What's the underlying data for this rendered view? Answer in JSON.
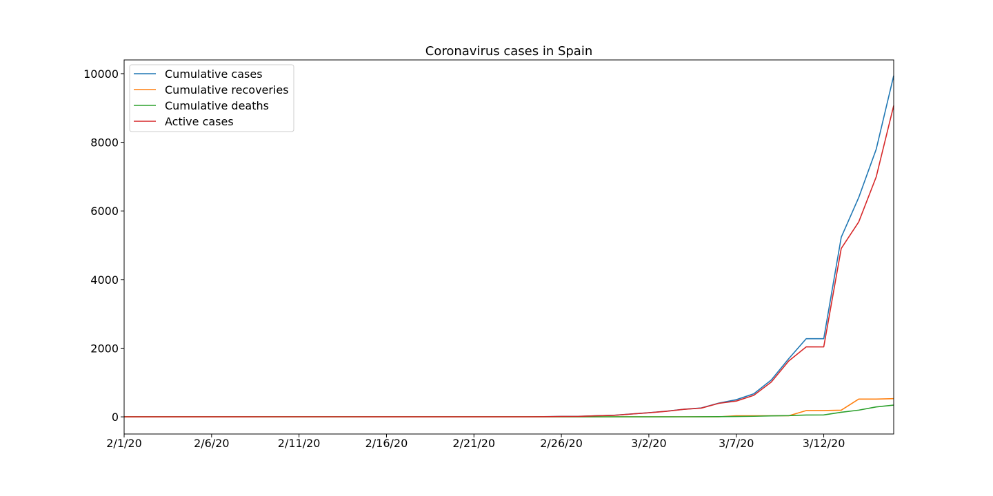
{
  "chart_data": {
    "type": "line",
    "title": "Coronavirus cases in Spain",
    "xlabel": "",
    "ylabel": "",
    "x": [
      "2/1/20",
      "2/2/20",
      "2/3/20",
      "2/4/20",
      "2/5/20",
      "2/6/20",
      "2/7/20",
      "2/8/20",
      "2/9/20",
      "2/10/20",
      "2/11/20",
      "2/12/20",
      "2/13/20",
      "2/14/20",
      "2/15/20",
      "2/16/20",
      "2/17/20",
      "2/18/20",
      "2/19/20",
      "2/20/20",
      "2/21/20",
      "2/22/20",
      "2/23/20",
      "2/24/20",
      "2/25/20",
      "2/26/20",
      "2/27/20",
      "2/28/20",
      "2/29/20",
      "3/1/20",
      "3/2/20",
      "3/3/20",
      "3/4/20",
      "3/5/20",
      "3/6/20",
      "3/7/20",
      "3/8/20",
      "3/9/20",
      "3/10/20",
      "3/11/20",
      "3/12/20",
      "3/13/20",
      "3/14/20",
      "3/15/20",
      "3/16/20"
    ],
    "x_ticks": [
      "2/1/20",
      "2/6/20",
      "2/11/20",
      "2/16/20",
      "2/21/20",
      "2/26/20",
      "3/2/20",
      "3/7/20",
      "3/12/20"
    ],
    "y_ticks": [
      0,
      2000,
      4000,
      6000,
      8000,
      10000
    ],
    "ylim": [
      -500,
      10400
    ],
    "grid": false,
    "legend_position": "top-left",
    "series": [
      {
        "name": "Cumulative cases",
        "color": "#1f77b4",
        "values": [
          1,
          1,
          1,
          1,
          1,
          1,
          1,
          1,
          2,
          2,
          2,
          2,
          2,
          2,
          2,
          2,
          2,
          2,
          2,
          2,
          2,
          2,
          2,
          2,
          6,
          13,
          15,
          32,
          45,
          84,
          120,
          165,
          222,
          259,
          400,
          500,
          673,
          1073,
          1695,
          2277,
          2277,
          5232,
          6391,
          7798,
          9942
        ]
      },
      {
        "name": "Cumulative recoveries",
        "color": "#ff7f0e",
        "values": [
          0,
          0,
          0,
          0,
          0,
          0,
          0,
          0,
          0,
          0,
          0,
          0,
          0,
          0,
          2,
          2,
          2,
          2,
          2,
          2,
          2,
          2,
          2,
          2,
          2,
          2,
          2,
          2,
          2,
          2,
          2,
          2,
          2,
          2,
          2,
          30,
          30,
          32,
          32,
          183,
          183,
          193,
          517,
          517,
          530
        ]
      },
      {
        "name": "Cumulative deaths",
        "color": "#2ca02c",
        "values": [
          0,
          0,
          0,
          0,
          0,
          0,
          0,
          0,
          0,
          0,
          0,
          0,
          0,
          0,
          0,
          0,
          0,
          0,
          0,
          0,
          0,
          0,
          0,
          0,
          0,
          0,
          0,
          0,
          0,
          0,
          0,
          1,
          2,
          3,
          5,
          10,
          17,
          28,
          35,
          54,
          55,
          133,
          195,
          289,
          342
        ]
      },
      {
        "name": "Active cases",
        "color": "#d62728",
        "values": [
          1,
          1,
          1,
          1,
          1,
          1,
          1,
          1,
          2,
          2,
          2,
          2,
          2,
          2,
          0,
          0,
          0,
          0,
          0,
          0,
          0,
          0,
          0,
          0,
          4,
          11,
          13,
          30,
          43,
          82,
          118,
          162,
          218,
          254,
          393,
          460,
          626,
          1013,
          1628,
          2040,
          2039,
          4906,
          5679,
          6992,
          9070
        ]
      }
    ]
  }
}
